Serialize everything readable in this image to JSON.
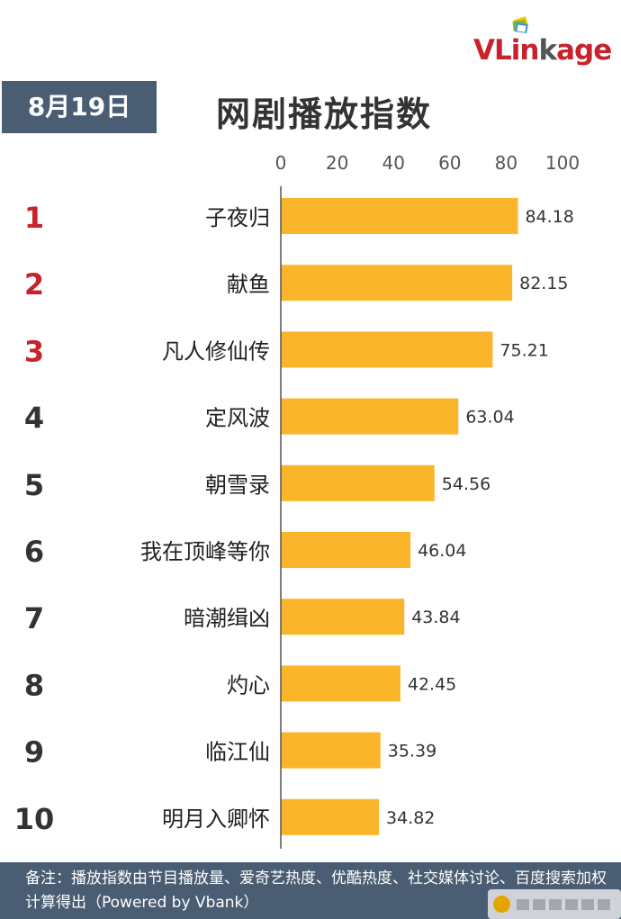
{
  "date": "8月19日",
  "brand": {
    "prefix": "VLin",
    "middle": "k",
    "suffix": "age",
    "colors": {
      "red": "#c7232d",
      "gray": "#555555"
    }
  },
  "footer_note": "备注：播放指数由节目播放量、爱奇艺热度、优酷热度、社交媒体讨论、百度搜索加权计算得出（Powered by Vbank）",
  "colors": {
    "bar": "#fbb52a",
    "header_bg": "#4a5d72",
    "rank_top": "#c7232d",
    "rank_other": "#333333"
  },
  "chart_data": {
    "type": "bar",
    "orientation": "horizontal",
    "title": "网剧播放指数",
    "xlim": [
      0,
      100
    ],
    "xticks": [
      0,
      20,
      40,
      60,
      80,
      100
    ],
    "categories": [
      "子夜归",
      "献鱼",
      "凡人修仙传",
      "定风波",
      "朝雪录",
      "我在顶峰等你",
      "暗潮缉凶",
      "灼心",
      "临江仙",
      "明月入卿怀"
    ],
    "ranks": [
      "1",
      "2",
      "3",
      "4",
      "5",
      "6",
      "7",
      "8",
      "9",
      "10"
    ],
    "values": [
      84.18,
      82.15,
      75.21,
      63.04,
      54.56,
      46.04,
      43.84,
      42.45,
      35.39,
      34.82
    ],
    "value_labels": [
      "84.18",
      "82.15",
      "75.21",
      "63.04",
      "54.56",
      "46.04",
      "43.84",
      "42.45",
      "35.39",
      "34.82"
    ],
    "highlight_top": 3,
    "grid": false
  }
}
